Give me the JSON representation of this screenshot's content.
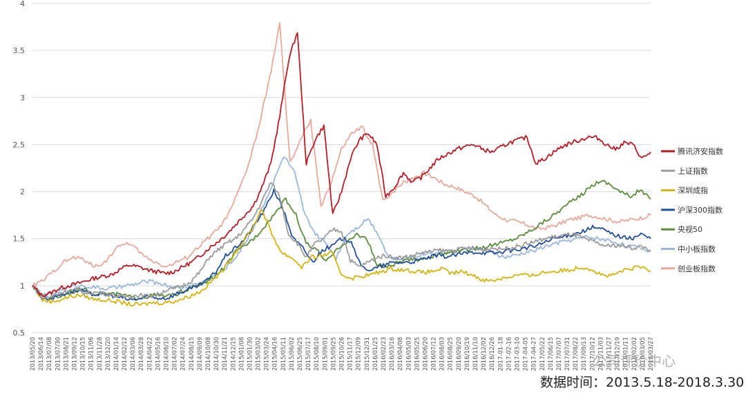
{
  "chart_data": {
    "type": "line",
    "title": "",
    "ylim": [
      0.5,
      4
    ],
    "yticks": [
      "0.5",
      "1",
      "1.5",
      "2",
      "2.5",
      "3",
      "3.5",
      "4"
    ],
    "grid": true,
    "legend_position": "right",
    "x_ticks": [
      "2013/05/20",
      "2013/06/14",
      "2013/07/08",
      "2013/07/30",
      "2013/08/21",
      "2013/09/12",
      "2013/10/15",
      "2013/11/06",
      "2013/11/28",
      "2013/12/20",
      "2014/01/14",
      "2014/02/12",
      "2014/03/06",
      "2014/03/28",
      "2014/04/22",
      "2014/05/16",
      "2014/06/10",
      "2014/07/02",
      "2014/07/24",
      "2014/08/15",
      "2014/09/09",
      "2014/10/08",
      "2014/10/30",
      "2014/11/21",
      "2014/12/15",
      "2015/01/08",
      "2015/01/30",
      "2015/03/02",
      "2015/03/24",
      "2015/04/16",
      "2015/05/11",
      "2015/06/02",
      "2015/06/25",
      "2015/07/17",
      "2015/08/10",
      "2015/09/01",
      "2015/09/25",
      "2015/10/26",
      "2015/11/17",
      "2015/12/09",
      "2015/12/31",
      "2016/01/25",
      "2016/02/23",
      "2016/03/16",
      "2016/04/08",
      "2016/05/03",
      "2016/05/25",
      "2016/06/20",
      "2016/07/12",
      "2016/08/03",
      "2016/08/25",
      "2016/09/20",
      "2016/10/19",
      "2016/11/10",
      "2016/12/02",
      "2016/12/26",
      "2017-01-18",
      "2017-02-16",
      "2017-03-10",
      "2017-04-05",
      "2017-04-27",
      "2017/05/22",
      "2017/06/15",
      "2017/07/07",
      "2017/07/31",
      "2017/08/22",
      "2017/09/13",
      "2017/10/12",
      "2017/11/03",
      "2017/11/27",
      "2017/12/19",
      "2018/01/11",
      "2018/02/02",
      "2018/03/05",
      "2018/03/27"
    ],
    "series": [
      {
        "name": "腾讯济安指数",
        "color": "#b51c24",
        "values": [
          1,
          0.9,
          0.92,
          0.97,
          1.0,
          1.02,
          1.05,
          1.08,
          1.1,
          1.12,
          1.18,
          1.22,
          1.2,
          1.17,
          1.15,
          1.13,
          1.15,
          1.2,
          1.25,
          1.32,
          1.4,
          1.47,
          1.55,
          1.65,
          1.75,
          1.85,
          2.05,
          2.3,
          2.8,
          3.4,
          3.7,
          2.3,
          2.55,
          2.7,
          1.75,
          2.0,
          2.35,
          2.55,
          2.62,
          2.5,
          1.95,
          2.05,
          2.2,
          2.1,
          2.15,
          2.25,
          2.35,
          2.4,
          2.45,
          2.48,
          2.5,
          2.45,
          2.42,
          2.47,
          2.52,
          2.55,
          2.58,
          2.3,
          2.35,
          2.42,
          2.48,
          2.52,
          2.55,
          2.58,
          2.57,
          2.5,
          2.45,
          2.52,
          2.5,
          2.35,
          2.42
        ]
      },
      {
        "name": "上证指数",
        "color": "#9b9b9b",
        "values": [
          1,
          0.88,
          0.88,
          0.92,
          0.95,
          0.96,
          0.92,
          0.93,
          0.92,
          0.9,
          0.88,
          0.89,
          0.9,
          0.89,
          0.9,
          0.95,
          0.97,
          1.0,
          1.05,
          1.15,
          1.3,
          1.38,
          1.45,
          1.5,
          1.6,
          1.72,
          1.9,
          2.1,
          1.95,
          1.55,
          1.45,
          1.3,
          1.45,
          1.5,
          1.6,
          1.58,
          1.27,
          1.2,
          1.25,
          1.3,
          1.32,
          1.3,
          1.3,
          1.32,
          1.35,
          1.36,
          1.38,
          1.37,
          1.38,
          1.4,
          1.4,
          1.38,
          1.4,
          1.39,
          1.4,
          1.42,
          1.45,
          1.47,
          1.5,
          1.52,
          1.53,
          1.55,
          1.52,
          1.48,
          1.45,
          1.42,
          1.43,
          1.42,
          1.4,
          1.42,
          1.38
        ]
      },
      {
        "name": "深圳成指",
        "color": "#d4b410",
        "values": [
          1,
          0.85,
          0.83,
          0.86,
          0.89,
          0.9,
          0.86,
          0.85,
          0.84,
          0.82,
          0.8,
          0.8,
          0.82,
          0.82,
          0.83,
          0.86,
          0.9,
          0.95,
          1.05,
          1.15,
          1.3,
          1.45,
          1.6,
          1.82,
          1.55,
          1.35,
          1.3,
          1.2,
          1.3,
          1.32,
          1.35,
          1.12,
          1.08,
          1.1,
          1.12,
          1.15,
          1.18,
          1.17,
          1.16,
          1.14,
          1.15,
          1.18,
          1.13,
          1.15,
          1.12,
          1.07,
          1.05,
          1.08,
          1.1,
          1.12,
          1.1,
          1.14,
          1.15,
          1.16,
          1.17,
          1.2,
          1.18,
          1.12,
          1.1,
          1.15,
          1.18,
          1.2,
          1.15
        ]
      },
      {
        "name": "沪深300指数",
        "color": "#234f9c",
        "values": [
          1,
          0.87,
          0.87,
          0.91,
          0.94,
          0.95,
          0.91,
          0.91,
          0.9,
          0.88,
          0.85,
          0.86,
          0.88,
          0.87,
          0.87,
          0.92,
          0.95,
          0.99,
          1.05,
          1.15,
          1.32,
          1.4,
          1.5,
          1.65,
          1.8,
          2.02,
          1.8,
          1.5,
          1.4,
          1.25,
          1.38,
          1.42,
          1.5,
          1.48,
          1.2,
          1.17,
          1.2,
          1.24,
          1.25,
          1.25,
          1.27,
          1.3,
          1.32,
          1.31,
          1.33,
          1.35,
          1.36,
          1.35,
          1.35,
          1.37,
          1.38,
          1.4,
          1.42,
          1.46,
          1.5,
          1.52,
          1.55,
          1.58,
          1.62,
          1.6,
          1.55,
          1.52,
          1.5,
          1.55,
          1.5
        ]
      },
      {
        "name": "央视50",
        "color": "#5a8c3c",
        "values": [
          1,
          0.86,
          0.87,
          0.9,
          0.94,
          0.96,
          0.92,
          0.92,
          0.91,
          0.9,
          0.87,
          0.88,
          0.9,
          0.89,
          0.9,
          0.95,
          0.99,
          1.03,
          1.1,
          1.2,
          1.35,
          1.43,
          1.52,
          1.65,
          1.78,
          1.92,
          1.75,
          1.45,
          1.38,
          1.25,
          1.4,
          1.45,
          1.55,
          1.5,
          1.22,
          1.2,
          1.24,
          1.27,
          1.28,
          1.3,
          1.33,
          1.35,
          1.37,
          1.38,
          1.4,
          1.42,
          1.45,
          1.48,
          1.52,
          1.58,
          1.65,
          1.72,
          1.8,
          1.88,
          1.95,
          2.05,
          2.12,
          2.08,
          2.0,
          1.95,
          2.02,
          1.92
        ]
      },
      {
        "name": "中小板指数",
        "color": "#9bb7d9",
        "values": [
          1,
          0.9,
          0.92,
          0.97,
          1.0,
          1.0,
          0.98,
          0.97,
          0.98,
          1.0,
          1.02,
          1.05,
          1.03,
          1.0,
          0.97,
          1.0,
          1.03,
          1.08,
          1.15,
          1.25,
          1.4,
          1.6,
          1.85,
          2.1,
          2.38,
          2.2,
          1.75,
          1.55,
          1.45,
          1.3,
          1.55,
          1.62,
          1.72,
          1.55,
          1.3,
          1.28,
          1.3,
          1.33,
          1.35,
          1.37,
          1.36,
          1.38,
          1.4,
          1.38,
          1.35,
          1.3,
          1.32,
          1.35,
          1.38,
          1.42,
          1.45,
          1.48,
          1.5,
          1.52,
          1.5,
          1.48,
          1.45,
          1.42,
          1.4,
          1.37
        ]
      },
      {
        "name": "创业板指数",
        "color": "#e8a89a",
        "values": [
          1,
          1.05,
          1.15,
          1.25,
          1.3,
          1.28,
          1.2,
          1.25,
          1.38,
          1.46,
          1.4,
          1.3,
          1.25,
          1.2,
          1.25,
          1.3,
          1.4,
          1.5,
          1.6,
          1.75,
          2.0,
          2.3,
          2.7,
          3.2,
          3.78,
          2.3,
          2.55,
          2.75,
          1.85,
          2.1,
          2.45,
          2.62,
          2.68,
          2.5,
          1.9,
          2.0,
          2.1,
          2.15,
          2.2,
          2.15,
          2.08,
          2.05,
          2.0,
          1.95,
          1.85,
          1.75,
          1.7,
          1.68,
          1.65,
          1.6,
          1.62,
          1.65,
          1.7,
          1.72,
          1.75,
          1.73,
          1.7,
          1.68,
          1.7,
          1.72,
          1.75
        ]
      }
    ]
  },
  "footer": {
    "date_range": "数据时间：2013.5.18-2018.3.30",
    "watermark": "公司评价中心"
  }
}
